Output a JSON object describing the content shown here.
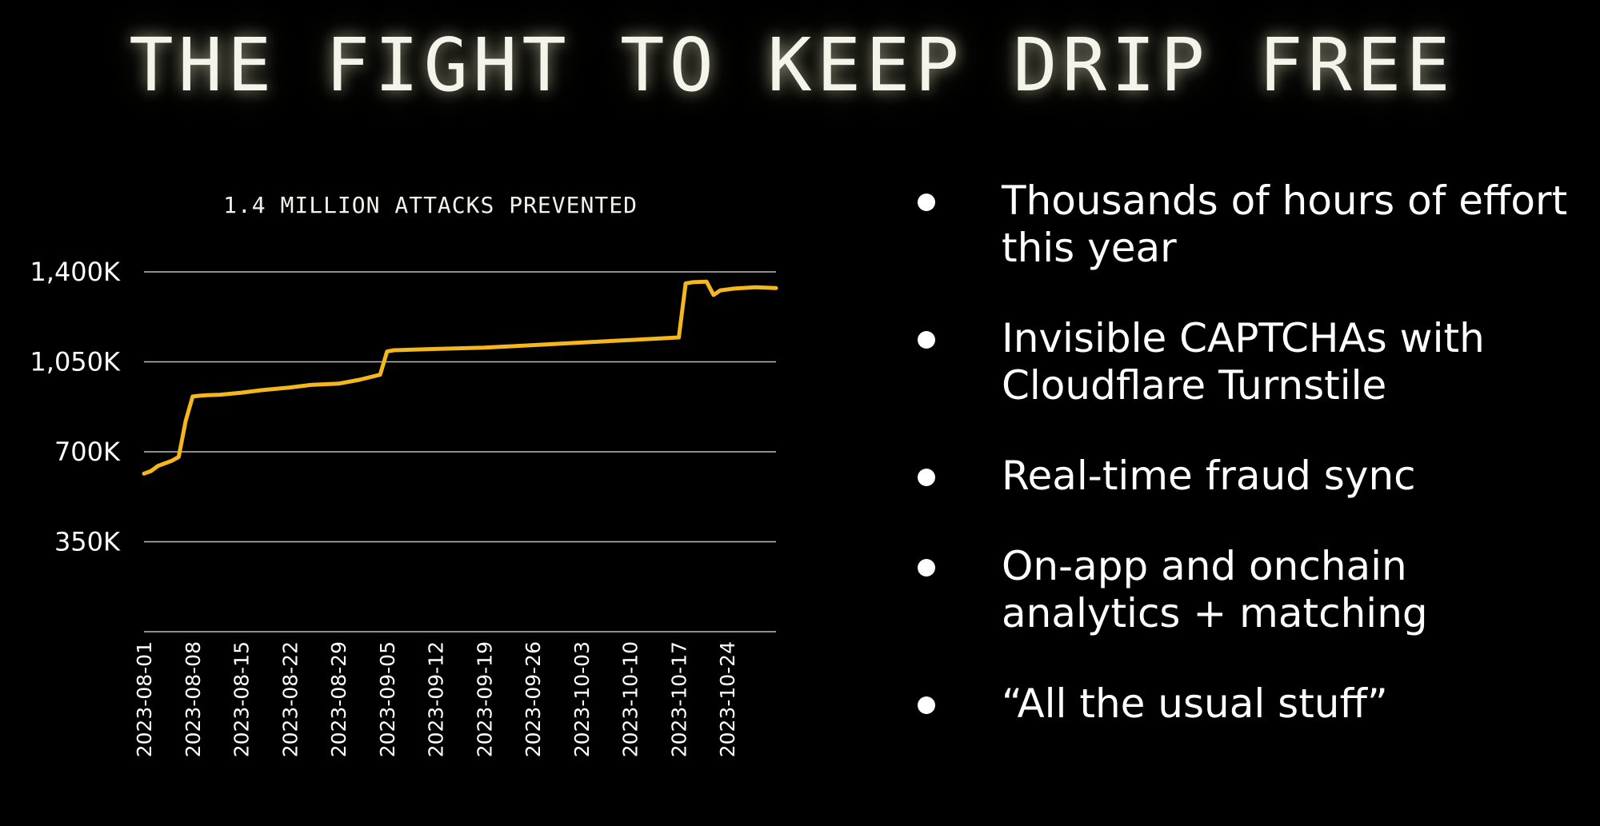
{
  "slide": {
    "title": "THE FIGHT TO KEEP DRIP FREE"
  },
  "bullets": [
    {
      "text": "Thousands of hours of effort this year"
    },
    {
      "text": "Invisible CAPTCHAs with Cloudflare Turnstile"
    },
    {
      "text": "Real-time fraud sync"
    },
    {
      "text": "On-app and onchain analytics + matching"
    },
    {
      "text": "“All the usual stuff”"
    }
  ],
  "chart_data": {
    "type": "line",
    "title": "1.4 MILLION ATTACKS PREVENTED",
    "xlabel": "",
    "ylabel": "",
    "grid": true,
    "legend": "none",
    "color": "#f5b81c",
    "ylim": [
      0,
      1400000
    ],
    "xlim": [
      "2023-08-01",
      "2023-10-31"
    ],
    "y_ticks": [
      {
        "value": 350000,
        "label": "350K"
      },
      {
        "value": 700000,
        "label": "700K"
      },
      {
        "value": 1050000,
        "label": "1,050K"
      },
      {
        "value": 1400000,
        "label": "1,400K"
      }
    ],
    "x_ticks": [
      "2023-08-01",
      "2023-08-08",
      "2023-08-15",
      "2023-08-22",
      "2023-08-29",
      "2023-09-05",
      "2023-09-12",
      "2023-09-19",
      "2023-09-26",
      "2023-10-03",
      "2023-10-10",
      "2023-10-17",
      "2023-10-24"
    ],
    "series": [
      {
        "x": [
          "2023-08-01",
          "2023-08-02",
          "2023-08-03",
          "2023-08-04",
          "2023-08-05",
          "2023-08-06",
          "2023-08-07",
          "2023-08-08",
          "2023-08-09",
          "2023-08-10",
          "2023-08-12",
          "2023-08-15",
          "2023-08-18",
          "2023-08-22",
          "2023-08-25",
          "2023-08-29",
          "2023-09-01",
          "2023-09-04",
          "2023-09-05",
          "2023-09-06",
          "2023-09-12",
          "2023-09-19",
          "2023-09-26",
          "2023-10-03",
          "2023-10-10",
          "2023-10-17",
          "2023-10-18",
          "2023-10-19",
          "2023-10-21",
          "2023-10-22",
          "2023-10-23",
          "2023-10-25",
          "2023-10-28",
          "2023-10-31"
        ],
        "y": [
          615000,
          625000,
          645000,
          655000,
          665000,
          680000,
          820000,
          915000,
          918000,
          920000,
          922000,
          930000,
          940000,
          950000,
          960000,
          965000,
          980000,
          1000000,
          1090000,
          1095000,
          1100000,
          1105000,
          1115000,
          1125000,
          1135000,
          1145000,
          1355000,
          1360000,
          1362000,
          1310000,
          1328000,
          1335000,
          1340000,
          1337000
        ]
      }
    ]
  }
}
